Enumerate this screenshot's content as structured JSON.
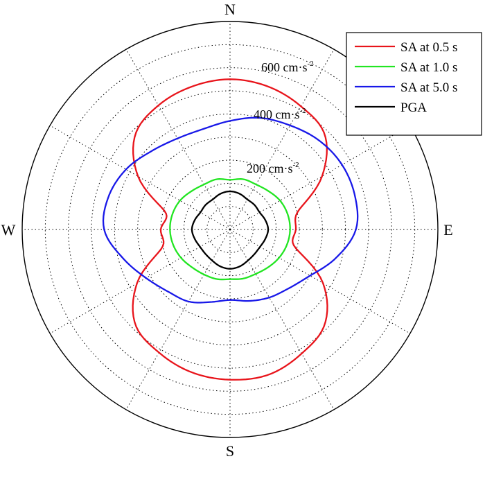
{
  "chart_data": {
    "type": "line",
    "subtype": "polar",
    "directions": {
      "north": "N",
      "east": "E",
      "south": "S",
      "west": "W"
    },
    "radial_unit": "cm·s",
    "radial_unit_exponent": "-2",
    "radial_tick_values": [
      200,
      400,
      600
    ],
    "radial_tick_labels": [
      "200 cm·s",
      "400 cm·s",
      "600 cm·s"
    ],
    "radial_max": 900,
    "angle_grid_step_deg": 30,
    "grid": true,
    "legend_position": "top-right",
    "series": [
      {
        "name": "SA at 0.5 s",
        "color": "#e8141b",
        "angles_deg": [
          0,
          15,
          30,
          45,
          60,
          75,
          90,
          105,
          120,
          135,
          150,
          165,
          180,
          195,
          210,
          225,
          240,
          255,
          270,
          285,
          300,
          315,
          330,
          345
        ],
        "values": [
          650,
          640,
          615,
          580,
          460,
          305,
          285,
          290,
          465,
          580,
          620,
          650,
          650,
          640,
          615,
          580,
          465,
          305,
          300,
          290,
          460,
          580,
          620,
          640
        ]
      },
      {
        "name": "SA at 1.0 s",
        "color": "#22e522",
        "angles_deg": [
          0,
          15,
          30,
          45,
          60,
          75,
          90,
          105,
          120,
          135,
          150,
          165,
          180,
          195,
          210,
          225,
          240,
          255,
          270,
          285,
          300,
          315,
          330,
          345
        ],
        "values": [
          215,
          225,
          225,
          235,
          250,
          258,
          260,
          255,
          245,
          232,
          222,
          220,
          215,
          222,
          225,
          232,
          245,
          255,
          260,
          258,
          250,
          235,
          225,
          225
        ]
      },
      {
        "name": "SA at 5.0 s",
        "color": "#1818e8",
        "angles_deg": [
          0,
          15,
          30,
          45,
          60,
          75,
          90,
          105,
          120,
          135,
          150,
          165,
          180,
          195,
          210,
          225,
          240,
          255,
          270,
          285,
          300,
          315,
          330,
          345
        ],
        "values": [
          470,
          500,
          520,
          545,
          560,
          560,
          545,
          475,
          400,
          360,
          340,
          320,
          305,
          325,
          360,
          380,
          420,
          480,
          545,
          545,
          520,
          480,
          455,
          450
        ]
      },
      {
        "name": "PGA",
        "color": "#000000",
        "angles_deg": [
          0,
          15,
          30,
          45,
          60,
          75,
          90,
          105,
          120,
          135,
          150,
          165,
          180,
          195,
          210,
          225,
          240,
          255,
          270,
          285,
          300,
          315,
          330,
          345
        ],
        "values": [
          165,
          160,
          150,
          150,
          148,
          158,
          165,
          158,
          150,
          150,
          155,
          165,
          170,
          165,
          155,
          150,
          150,
          158,
          165,
          158,
          148,
          150,
          150,
          160
        ]
      }
    ]
  }
}
